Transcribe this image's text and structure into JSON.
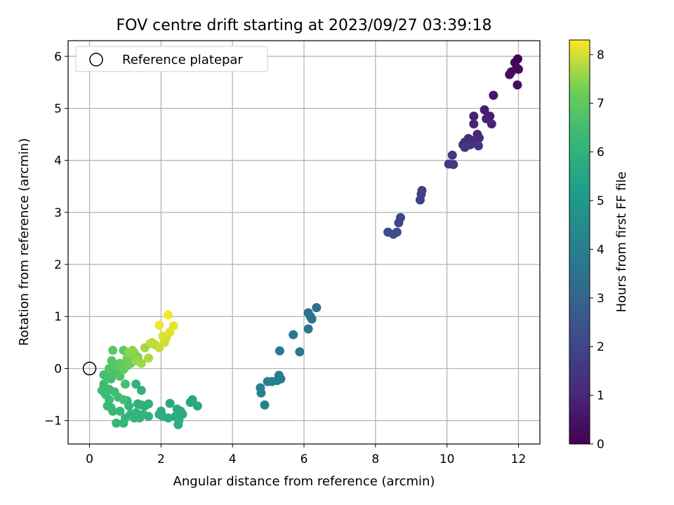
{
  "chart_data": {
    "type": "scatter",
    "title": "FOV centre drift starting at 2023/09/27 03:39:18",
    "xlabel": "Angular distance from reference (arcmin)",
    "ylabel": "Rotation from reference (arcmin)",
    "xlim": [
      -0.6,
      12.6
    ],
    "ylim": [
      -1.45,
      6.3
    ],
    "xticks": [
      0,
      2,
      4,
      6,
      8,
      10,
      12
    ],
    "yticks": [
      -1,
      0,
      1,
      2,
      3,
      4,
      5,
      6
    ],
    "grid": true,
    "legend": {
      "placement": "top-left",
      "entries": [
        "Reference platepar"
      ]
    },
    "reference_point": {
      "x": 0,
      "y": 0,
      "label": "Reference platepar"
    },
    "colorbar": {
      "label": "Hours from first FF file",
      "range": [
        0,
        8.3
      ],
      "ticks": [
        0,
        1,
        2,
        3,
        4,
        5,
        6,
        7,
        8
      ],
      "colormap": "viridis"
    },
    "series": [
      {
        "color_value": "hours",
        "points": [
          {
            "x": 11.98,
            "y": 5.95,
            "h": 0.05
          },
          {
            "x": 11.9,
            "y": 5.88,
            "h": 0.1
          },
          {
            "x": 11.95,
            "y": 5.78,
            "h": 0.15
          },
          {
            "x": 12.0,
            "y": 5.75,
            "h": 0.2
          },
          {
            "x": 11.8,
            "y": 5.7,
            "h": 0.25
          },
          {
            "x": 11.75,
            "y": 5.65,
            "h": 0.3
          },
          {
            "x": 11.97,
            "y": 5.45,
            "h": 0.35
          },
          {
            "x": 11.3,
            "y": 5.25,
            "h": 0.6
          },
          {
            "x": 11.05,
            "y": 4.97,
            "h": 0.75
          },
          {
            "x": 11.2,
            "y": 4.85,
            "h": 0.8
          },
          {
            "x": 10.75,
            "y": 4.85,
            "h": 0.85
          },
          {
            "x": 11.1,
            "y": 4.8,
            "h": 0.9
          },
          {
            "x": 11.25,
            "y": 4.7,
            "h": 0.95
          },
          {
            "x": 10.75,
            "y": 4.7,
            "h": 1.0
          },
          {
            "x": 10.85,
            "y": 4.5,
            "h": 1.05
          },
          {
            "x": 10.9,
            "y": 4.43,
            "h": 1.1
          },
          {
            "x": 10.6,
            "y": 4.42,
            "h": 1.15
          },
          {
            "x": 10.7,
            "y": 4.38,
            "h": 1.2
          },
          {
            "x": 10.5,
            "y": 4.35,
            "h": 1.25
          },
          {
            "x": 10.45,
            "y": 4.3,
            "h": 1.3
          },
          {
            "x": 10.65,
            "y": 4.3,
            "h": 1.35
          },
          {
            "x": 10.88,
            "y": 4.28,
            "h": 1.4
          },
          {
            "x": 10.5,
            "y": 4.25,
            "h": 1.45
          },
          {
            "x": 10.15,
            "y": 4.1,
            "h": 1.5
          },
          {
            "x": 10.05,
            "y": 3.93,
            "h": 1.55
          },
          {
            "x": 10.18,
            "y": 3.92,
            "h": 1.6
          },
          {
            "x": 9.3,
            "y": 3.42,
            "h": 1.8
          },
          {
            "x": 9.28,
            "y": 3.35,
            "h": 1.85
          },
          {
            "x": 9.25,
            "y": 3.24,
            "h": 1.9
          },
          {
            "x": 8.7,
            "y": 2.9,
            "h": 2.0
          },
          {
            "x": 8.65,
            "y": 2.8,
            "h": 2.05
          },
          {
            "x": 8.35,
            "y": 2.62,
            "h": 2.1
          },
          {
            "x": 8.6,
            "y": 2.62,
            "h": 2.15
          },
          {
            "x": 8.5,
            "y": 2.58,
            "h": 2.2
          },
          {
            "x": 6.35,
            "y": 1.17,
            "h": 3.4
          },
          {
            "x": 6.12,
            "y": 1.07,
            "h": 3.45
          },
          {
            "x": 6.18,
            "y": 1.0,
            "h": 3.5
          },
          {
            "x": 6.22,
            "y": 0.95,
            "h": 3.55
          },
          {
            "x": 6.12,
            "y": 0.76,
            "h": 3.6
          },
          {
            "x": 5.7,
            "y": 0.65,
            "h": 3.7
          },
          {
            "x": 5.32,
            "y": 0.34,
            "h": 3.8
          },
          {
            "x": 5.88,
            "y": 0.32,
            "h": 3.75
          },
          {
            "x": 5.3,
            "y": -0.13,
            "h": 3.9
          },
          {
            "x": 5.35,
            "y": -0.2,
            "h": 3.92
          },
          {
            "x": 5.25,
            "y": -0.23,
            "h": 3.95
          },
          {
            "x": 5.1,
            "y": -0.25,
            "h": 4.0
          },
          {
            "x": 4.98,
            "y": -0.25,
            "h": 4.05
          },
          {
            "x": 4.78,
            "y": -0.37,
            "h": 4.1
          },
          {
            "x": 4.8,
            "y": -0.47,
            "h": 4.15
          },
          {
            "x": 4.9,
            "y": -0.7,
            "h": 4.2
          },
          {
            "x": 3.02,
            "y": -0.72,
            "h": 5.6
          },
          {
            "x": 2.88,
            "y": -0.6,
            "h": 5.62
          },
          {
            "x": 2.82,
            "y": -0.65,
            "h": 5.64
          },
          {
            "x": 2.25,
            "y": -0.67,
            "h": 5.7
          },
          {
            "x": 2.45,
            "y": -0.78,
            "h": 5.72
          },
          {
            "x": 2.55,
            "y": -0.82,
            "h": 5.74
          },
          {
            "x": 2.6,
            "y": -0.88,
            "h": 5.76
          },
          {
            "x": 2.4,
            "y": -0.92,
            "h": 5.78
          },
          {
            "x": 2.2,
            "y": -0.95,
            "h": 5.8
          },
          {
            "x": 2.0,
            "y": -0.82,
            "h": 5.82
          },
          {
            "x": 1.95,
            "y": -0.88,
            "h": 5.84
          },
          {
            "x": 2.05,
            "y": -0.92,
            "h": 5.86
          },
          {
            "x": 2.5,
            "y": -1.0,
            "h": 5.88
          },
          {
            "x": 2.48,
            "y": -1.08,
            "h": 5.9
          },
          {
            "x": 1.65,
            "y": -0.68,
            "h": 5.92
          },
          {
            "x": 1.55,
            "y": -0.72,
            "h": 5.94
          },
          {
            "x": 1.45,
            "y": -0.7,
            "h": 5.96
          },
          {
            "x": 1.35,
            "y": -0.68,
            "h": 5.98
          },
          {
            "x": 1.3,
            "y": -0.3,
            "h": 6.0
          },
          {
            "x": 1.45,
            "y": -0.42,
            "h": 6.02
          },
          {
            "x": 1.65,
            "y": -0.92,
            "h": 6.04
          },
          {
            "x": 1.5,
            "y": -0.88,
            "h": 6.06
          },
          {
            "x": 1.4,
            "y": -0.95,
            "h": 6.08
          },
          {
            "x": 1.3,
            "y": -0.85,
            "h": 6.1
          },
          {
            "x": 1.25,
            "y": -0.95,
            "h": 6.12
          },
          {
            "x": 1.1,
            "y": -0.72,
            "h": 6.14
          },
          {
            "x": 1.05,
            "y": -0.62,
            "h": 6.16
          },
          {
            "x": 1.15,
            "y": -0.88,
            "h": 6.18
          },
          {
            "x": 1.0,
            "y": -0.95,
            "h": 6.2
          },
          {
            "x": 0.95,
            "y": -1.05,
            "h": 6.22
          },
          {
            "x": 0.75,
            "y": -1.05,
            "h": 6.24
          },
          {
            "x": 0.85,
            "y": -0.82,
            "h": 6.26
          },
          {
            "x": 0.65,
            "y": -0.82,
            "h": 6.28
          },
          {
            "x": 0.6,
            "y": -0.75,
            "h": 6.3
          },
          {
            "x": 0.5,
            "y": -0.72,
            "h": 6.32
          },
          {
            "x": 0.55,
            "y": -0.6,
            "h": 6.34
          },
          {
            "x": 0.45,
            "y": -0.5,
            "h": 6.36
          },
          {
            "x": 0.35,
            "y": -0.42,
            "h": 6.38
          },
          {
            "x": 0.4,
            "y": -0.3,
            "h": 6.4
          },
          {
            "x": 0.55,
            "y": -0.4,
            "h": 6.42
          },
          {
            "x": 0.7,
            "y": -0.45,
            "h": 6.44
          },
          {
            "x": 0.8,
            "y": -0.55,
            "h": 6.46
          },
          {
            "x": 0.95,
            "y": -0.6,
            "h": 6.48
          },
          {
            "x": 1.0,
            "y": -0.3,
            "h": 6.5
          },
          {
            "x": 0.6,
            "y": -0.2,
            "h": 6.52
          },
          {
            "x": 0.4,
            "y": -0.12,
            "h": 6.54
          },
          {
            "x": 0.5,
            "y": -0.18,
            "h": 6.56
          },
          {
            "x": 0.65,
            "y": -0.1,
            "h": 6.6
          },
          {
            "x": 0.75,
            "y": -0.05,
            "h": 6.65
          },
          {
            "x": 0.85,
            "y": -0.15,
            "h": 6.7
          },
          {
            "x": 0.55,
            "y": 0.0,
            "h": 6.75
          },
          {
            "x": 0.62,
            "y": 0.15,
            "h": 6.8
          },
          {
            "x": 0.65,
            "y": 0.35,
            "h": 6.9
          },
          {
            "x": 0.75,
            "y": 0.05,
            "h": 6.95
          },
          {
            "x": 0.95,
            "y": 0.35,
            "h": 7.0
          },
          {
            "x": 0.85,
            "y": 0.1,
            "h": 7.05
          },
          {
            "x": 0.95,
            "y": -0.02,
            "h": 7.1
          },
          {
            "x": 1.05,
            "y": 0.05,
            "h": 7.15
          },
          {
            "x": 1.15,
            "y": 0.1,
            "h": 7.2
          },
          {
            "x": 1.05,
            "y": 0.2,
            "h": 7.25
          },
          {
            "x": 1.2,
            "y": 0.25,
            "h": 7.3
          },
          {
            "x": 1.25,
            "y": 0.3,
            "h": 7.35
          },
          {
            "x": 1.35,
            "y": 0.22,
            "h": 7.4
          },
          {
            "x": 1.1,
            "y": 0.3,
            "h": 7.45
          },
          {
            "x": 1.2,
            "y": 0.35,
            "h": 7.5
          },
          {
            "x": 1.3,
            "y": 0.15,
            "h": 7.55
          },
          {
            "x": 1.45,
            "y": 0.1,
            "h": 7.6
          },
          {
            "x": 1.55,
            "y": 0.4,
            "h": 7.65
          },
          {
            "x": 1.65,
            "y": 0.2,
            "h": 7.7
          },
          {
            "x": 1.7,
            "y": 0.48,
            "h": 7.75
          },
          {
            "x": 1.85,
            "y": 0.45,
            "h": 7.8
          },
          {
            "x": 1.75,
            "y": 0.5,
            "h": 7.85
          },
          {
            "x": 1.95,
            "y": 0.4,
            "h": 7.9
          },
          {
            "x": 2.1,
            "y": 0.5,
            "h": 7.95
          },
          {
            "x": 2.15,
            "y": 0.6,
            "h": 8.0
          },
          {
            "x": 2.05,
            "y": 0.62,
            "h": 8.05
          },
          {
            "x": 2.25,
            "y": 0.7,
            "h": 8.1
          },
          {
            "x": 2.35,
            "y": 0.82,
            "h": 8.15
          },
          {
            "x": 1.95,
            "y": 0.83,
            "h": 8.2
          },
          {
            "x": 2.2,
            "y": 1.03,
            "h": 8.25
          }
        ]
      }
    ]
  }
}
